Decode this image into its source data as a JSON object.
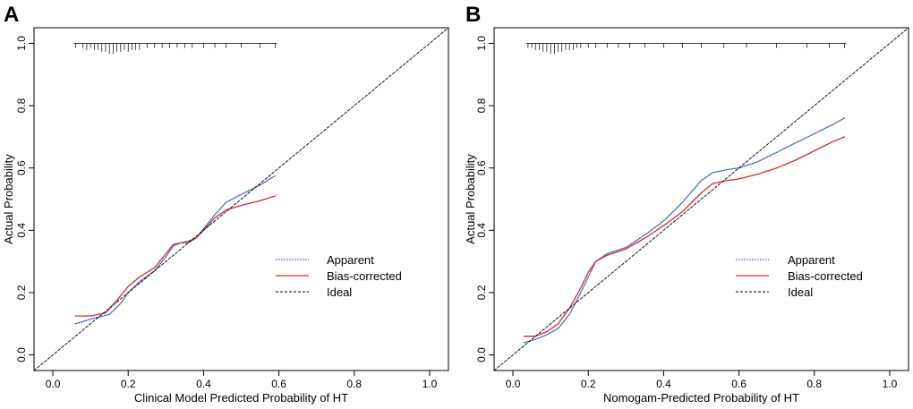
{
  "figure": {
    "panels": [
      {
        "letter": "A",
        "xlabel": "Clinical Model Predicted Probability of HT",
        "ylabel": "Actual Probability"
      },
      {
        "letter": "B",
        "xlabel": "Nomogam-Predicted Probability of HT",
        "ylabel": "Actual Probability"
      }
    ]
  },
  "colors": {
    "apparent": "#2f5fb3",
    "bias_corrected": "#d62738",
    "ideal": "#000000",
    "axis": "#000000"
  },
  "chart_data": [
    {
      "type": "line",
      "panel": "A",
      "title": "",
      "xlabel": "Clinical Model Predicted Probability of HT",
      "ylabel": "Actual Probability",
      "xlim": [
        -0.05,
        1.05
      ],
      "ylim": [
        -0.05,
        1.05
      ],
      "xticks": [
        0.0,
        0.2,
        0.4,
        0.6,
        0.8,
        1.0
      ],
      "yticks": [
        0.0,
        0.2,
        0.4,
        0.6,
        0.8,
        1.0
      ],
      "xtick_labels": [
        "0.0",
        "0.2",
        "0.4",
        "0.6",
        "0.8",
        "1.0"
      ],
      "ytick_labels": [
        "0.0",
        "0.2",
        "0.4",
        "0.6",
        "0.8",
        "1.0"
      ],
      "legend": [
        "Apparent",
        "Bias-corrected",
        "Ideal"
      ],
      "legend_position": "bottom-right",
      "grid": false,
      "rug": [
        0.06,
        0.08,
        0.09,
        0.1,
        0.11,
        0.12,
        0.13,
        0.14,
        0.15,
        0.16,
        0.17,
        0.18,
        0.19,
        0.2,
        0.21,
        0.22,
        0.23,
        0.25,
        0.27,
        0.29,
        0.31,
        0.33,
        0.35,
        0.37,
        0.4,
        0.43,
        0.46,
        0.5,
        0.55,
        0.59
      ],
      "rug_heights": [
        1,
        1,
        2,
        1,
        2,
        2,
        3,
        3,
        4,
        4,
        3,
        3,
        2,
        3,
        2,
        2,
        2,
        1,
        1,
        1,
        1,
        1,
        1,
        1,
        1,
        1,
        1,
        1,
        1,
        1
      ],
      "series": [
        {
          "name": "Apparent",
          "style": "dotted",
          "x": [
            0.06,
            0.1,
            0.15,
            0.18,
            0.2,
            0.23,
            0.27,
            0.3,
            0.32,
            0.34,
            0.36,
            0.38,
            0.4,
            0.43,
            0.46,
            0.5,
            0.55,
            0.59
          ],
          "y": [
            0.1,
            0.115,
            0.13,
            0.165,
            0.2,
            0.235,
            0.27,
            0.315,
            0.35,
            0.36,
            0.36,
            0.375,
            0.405,
            0.45,
            0.49,
            0.515,
            0.545,
            0.575
          ]
        },
        {
          "name": "Bias-corrected",
          "style": "solid",
          "x": [
            0.06,
            0.1,
            0.14,
            0.17,
            0.2,
            0.23,
            0.27,
            0.3,
            0.32,
            0.34,
            0.36,
            0.38,
            0.4,
            0.43,
            0.46,
            0.5,
            0.55,
            0.59
          ],
          "y": [
            0.125,
            0.125,
            0.135,
            0.175,
            0.22,
            0.25,
            0.28,
            0.325,
            0.355,
            0.36,
            0.365,
            0.375,
            0.4,
            0.44,
            0.465,
            0.48,
            0.495,
            0.51
          ]
        },
        {
          "name": "Ideal",
          "style": "dashed",
          "x": [
            -0.05,
            1.05
          ],
          "y": [
            -0.05,
            1.05
          ]
        }
      ]
    },
    {
      "type": "line",
      "panel": "B",
      "title": "",
      "xlabel": "Nomogam-Predicted Probability of HT",
      "ylabel": "Actual Probability",
      "xlim": [
        -0.05,
        1.05
      ],
      "ylim": [
        -0.05,
        1.05
      ],
      "xticks": [
        0.0,
        0.2,
        0.4,
        0.6,
        0.8,
        1.0
      ],
      "yticks": [
        0.0,
        0.2,
        0.4,
        0.6,
        0.8,
        1.0
      ],
      "xtick_labels": [
        "0.0",
        "0.2",
        "0.4",
        "0.6",
        "0.8",
        "1.0"
      ],
      "ytick_labels": [
        "0.0",
        "0.2",
        "0.4",
        "0.6",
        "0.8",
        "1.0"
      ],
      "legend": [
        "Apparent",
        "Bias-corrected",
        "Ideal"
      ],
      "legend_position": "bottom-right",
      "grid": false,
      "rug": [
        0.04,
        0.05,
        0.06,
        0.07,
        0.08,
        0.09,
        0.1,
        0.11,
        0.12,
        0.13,
        0.14,
        0.15,
        0.16,
        0.17,
        0.18,
        0.2,
        0.22,
        0.25,
        0.28,
        0.31,
        0.35,
        0.4,
        0.45,
        0.5,
        0.56,
        0.62,
        0.7,
        0.78,
        0.84,
        0.88
      ],
      "rug_heights": [
        1,
        1,
        2,
        2,
        3,
        3,
        4,
        4,
        3,
        3,
        2,
        2,
        2,
        1,
        1,
        1,
        1,
        1,
        1,
        1,
        1,
        1,
        1,
        1,
        1,
        1,
        1,
        1,
        1,
        1
      ],
      "series": [
        {
          "name": "Apparent",
          "style": "dotted",
          "x": [
            0.03,
            0.06,
            0.09,
            0.12,
            0.15,
            0.18,
            0.2,
            0.22,
            0.25,
            0.3,
            0.35,
            0.4,
            0.45,
            0.5,
            0.53,
            0.57,
            0.6,
            0.65,
            0.7,
            0.75,
            0.8,
            0.85,
            0.88
          ],
          "y": [
            0.04,
            0.05,
            0.065,
            0.085,
            0.13,
            0.2,
            0.25,
            0.3,
            0.325,
            0.345,
            0.385,
            0.43,
            0.49,
            0.56,
            0.585,
            0.595,
            0.6,
            0.62,
            0.65,
            0.68,
            0.71,
            0.74,
            0.76
          ]
        },
        {
          "name": "Bias-corrected",
          "style": "solid",
          "x": [
            0.03,
            0.06,
            0.09,
            0.12,
            0.15,
            0.18,
            0.2,
            0.22,
            0.25,
            0.3,
            0.35,
            0.4,
            0.45,
            0.5,
            0.53,
            0.57,
            0.6,
            0.65,
            0.7,
            0.75,
            0.8,
            0.85,
            0.88
          ],
          "y": [
            0.06,
            0.06,
            0.075,
            0.1,
            0.15,
            0.215,
            0.265,
            0.3,
            0.32,
            0.34,
            0.375,
            0.415,
            0.46,
            0.52,
            0.55,
            0.56,
            0.565,
            0.58,
            0.6,
            0.625,
            0.655,
            0.685,
            0.7
          ]
        },
        {
          "name": "Ideal",
          "style": "dashed",
          "x": [
            -0.05,
            1.05
          ],
          "y": [
            -0.05,
            1.05
          ]
        }
      ]
    }
  ]
}
